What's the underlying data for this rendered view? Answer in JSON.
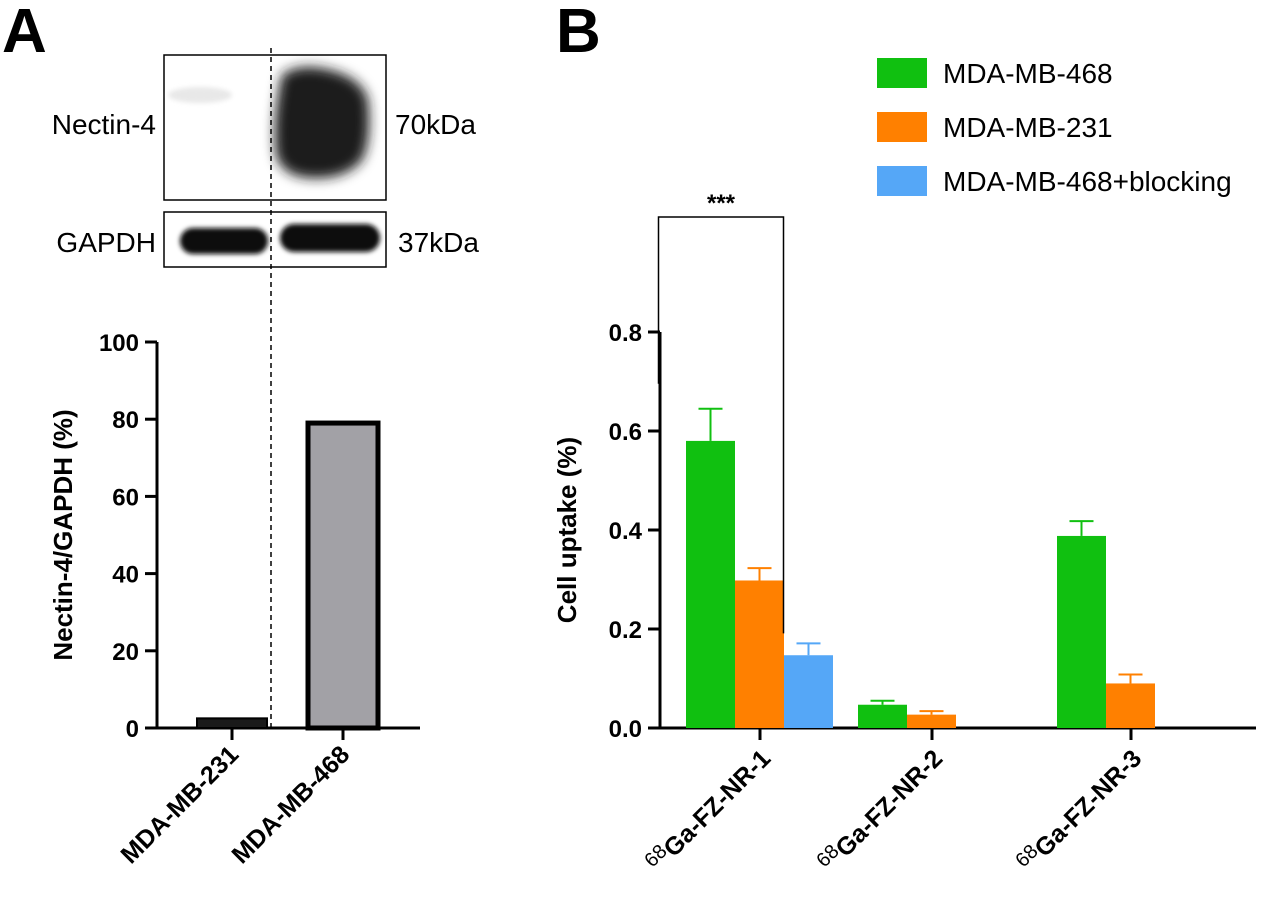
{
  "panel_a": {
    "letter": "A",
    "blot": {
      "rows": [
        {
          "label": "Nectin-4",
          "size": "70kDa"
        },
        {
          "label": "GAPDH",
          "size": "37kDa"
        }
      ]
    }
  },
  "panel_b": {
    "letter": "B",
    "significance": "***"
  },
  "chart_data": [
    {
      "type": "bar",
      "title": "",
      "xlabel": "",
      "ylabel": "Nectin-4/GAPDH (%)",
      "ylim": [
        0,
        100
      ],
      "yticks": [
        0,
        20,
        40,
        60,
        80,
        100
      ],
      "categories": [
        "MDA-MB-231",
        "MDA-MB-468"
      ],
      "values": [
        2.5,
        79
      ],
      "colors": {
        "MDA-MB-231": "#1a1a1a",
        "MDA-MB-468": "#a2a1a6"
      },
      "grid": false
    },
    {
      "type": "bar",
      "title": "",
      "xlabel": "",
      "ylabel": "Cell uptake (%)",
      "ylim": [
        0,
        0.8
      ],
      "yticks": [
        "0.0",
        "0.2",
        "0.4",
        "0.6",
        "0.8"
      ],
      "categories": [
        {
          "sup": "68",
          "name": "Ga-FZ-NR-1"
        },
        {
          "sup": "68",
          "name": "Ga-FZ-NR-2"
        },
        {
          "sup": "68",
          "name": "Ga-FZ-NR-3"
        }
      ],
      "series": [
        {
          "name": "MDA-MB-468",
          "color": "#10c010",
          "values": [
            0.58,
            0.047,
            0.388
          ],
          "errors": [
            0.065,
            0.008,
            0.03
          ]
        },
        {
          "name": "MDA-MB-231",
          "color": "#ff8000",
          "values": [
            0.298,
            0.027,
            0.09
          ],
          "errors": [
            0.025,
            0.007,
            0.018
          ]
        },
        {
          "name": "MDA-MB-468+blocking",
          "color": "#55a7f7",
          "values": [
            0.147,
            null,
            null
          ],
          "errors": [
            0.024,
            null,
            null
          ]
        }
      ],
      "legend": "top-right",
      "grid": false
    }
  ]
}
